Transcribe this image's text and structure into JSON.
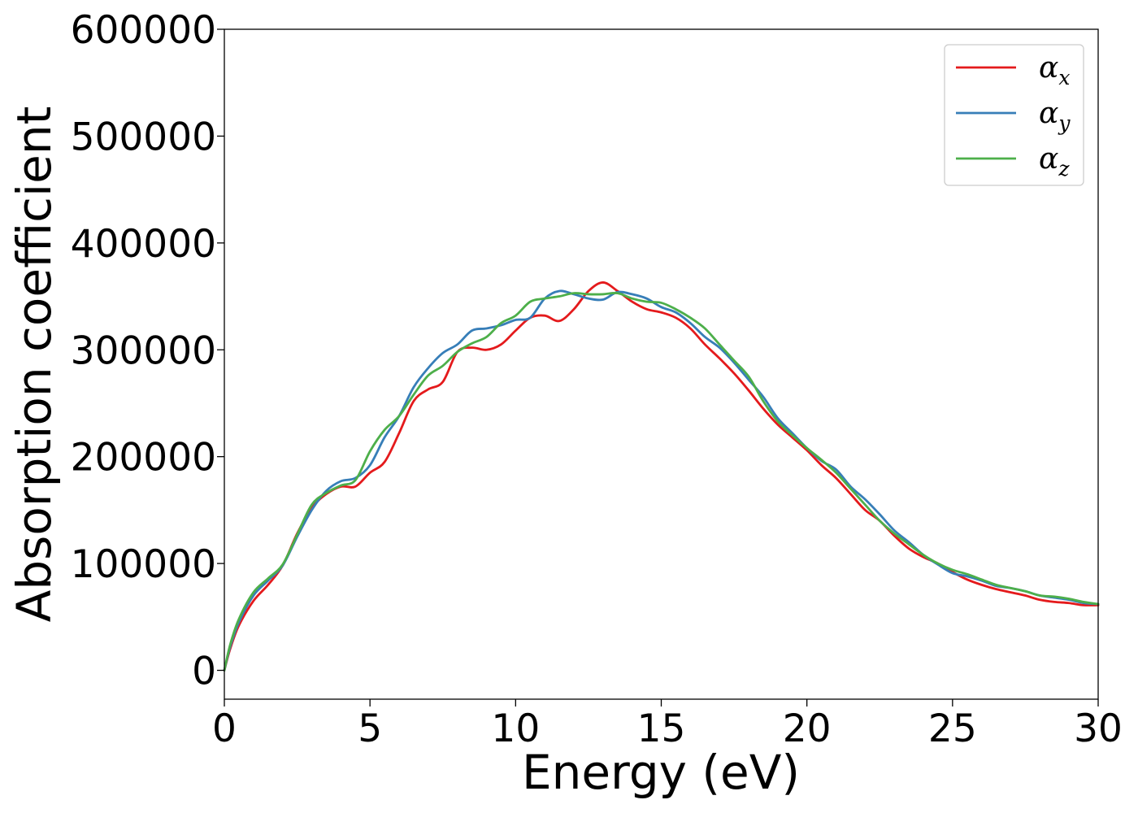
{
  "chart_data": {
    "type": "line",
    "title": "",
    "xlabel": "Energy (eV)",
    "ylabel": "Absorption coefficient",
    "xlim": [
      0,
      30
    ],
    "ylim": [
      -27000,
      600000
    ],
    "x_ticks": [
      0,
      5,
      10,
      15,
      20,
      25,
      30
    ],
    "y_ticks": [
      0,
      100000,
      200000,
      300000,
      400000,
      500000,
      600000
    ],
    "grid": false,
    "legend_position": "top-right",
    "series": [
      {
        "name": "α",
        "subscript": "x",
        "color": "#e41a1c",
        "x": [
          0,
          0.2,
          0.5,
          1.0,
          1.5,
          2.0,
          2.5,
          3.0,
          3.5,
          4.0,
          4.5,
          5.0,
          5.5,
          6.0,
          6.5,
          7.0,
          7.5,
          8.0,
          8.5,
          9.0,
          9.5,
          10.0,
          10.5,
          11.0,
          11.5,
          12.0,
          12.5,
          13.0,
          13.5,
          14.0,
          14.5,
          15.0,
          15.5,
          16.0,
          16.5,
          17.0,
          17.5,
          18.0,
          18.5,
          19.0,
          19.5,
          20.0,
          20.5,
          21.0,
          21.5,
          22.0,
          22.5,
          23.0,
          23.5,
          24.0,
          24.5,
          25.0,
          25.5,
          26.0,
          26.5,
          27.0,
          27.5,
          28.0,
          28.5,
          29.0,
          29.5,
          30.0
        ],
        "y": [
          0,
          20000,
          42000,
          65000,
          80000,
          98000,
          128000,
          152000,
          165000,
          172000,
          172000,
          185000,
          195000,
          222000,
          252000,
          263000,
          270000,
          298000,
          302000,
          300000,
          305000,
          318000,
          330000,
          332000,
          327000,
          338000,
          355000,
          363000,
          355000,
          345000,
          338000,
          335000,
          330000,
          320000,
          305000,
          292000,
          278000,
          262000,
          245000,
          230000,
          218000,
          206000,
          192000,
          180000,
          165000,
          150000,
          140000,
          126000,
          114000,
          106000,
          100000,
          92000,
          85000,
          80000,
          76000,
          73000,
          70000,
          66000,
          64000,
          63000,
          61000,
          61000
        ]
      },
      {
        "name": "α",
        "subscript": "y",
        "color": "#377eb8",
        "x": [
          0,
          0.2,
          0.5,
          1.0,
          1.5,
          2.0,
          2.5,
          3.0,
          3.5,
          4.0,
          4.5,
          5.0,
          5.5,
          6.0,
          6.5,
          7.0,
          7.5,
          8.0,
          8.5,
          9.0,
          9.5,
          10.0,
          10.5,
          11.0,
          11.5,
          12.0,
          12.5,
          13.0,
          13.5,
          14.0,
          14.5,
          15.0,
          15.5,
          16.0,
          16.5,
          17.0,
          17.5,
          18.0,
          18.5,
          19.0,
          19.5,
          20.0,
          20.5,
          21.0,
          21.5,
          22.0,
          22.5,
          23.0,
          23.5,
          24.0,
          24.5,
          25.0,
          25.5,
          26.0,
          26.5,
          27.0,
          27.5,
          28.0,
          28.5,
          29.0,
          29.5,
          30.0
        ],
        "y": [
          0,
          22000,
          45000,
          70000,
          84000,
          98000,
          125000,
          150000,
          168000,
          177000,
          180000,
          192000,
          218000,
          238000,
          265000,
          283000,
          297000,
          305000,
          318000,
          320000,
          323000,
          328000,
          330000,
          348000,
          355000,
          352000,
          348000,
          347000,
          354000,
          352000,
          348000,
          340000,
          335000,
          325000,
          312000,
          302000,
          288000,
          272000,
          256000,
          236000,
          222000,
          208000,
          196000,
          188000,
          172000,
          160000,
          146000,
          131000,
          120000,
          108000,
          99000,
          91000,
          88000,
          84000,
          79000,
          77000,
          74000,
          70000,
          68000,
          66000,
          63000,
          62000
        ]
      },
      {
        "name": "α",
        "subscript": "z",
        "color": "#4daf4a",
        "x": [
          0,
          0.2,
          0.5,
          1.0,
          1.5,
          2.0,
          2.5,
          3.0,
          3.5,
          4.0,
          4.5,
          5.0,
          5.5,
          6.0,
          6.5,
          7.0,
          7.5,
          8.0,
          8.5,
          9.0,
          9.5,
          10.0,
          10.5,
          11.0,
          11.5,
          12.0,
          12.5,
          13.0,
          13.5,
          14.0,
          14.5,
          15.0,
          15.5,
          16.0,
          16.5,
          17.0,
          17.5,
          18.0,
          18.5,
          19.0,
          19.5,
          20.0,
          20.5,
          21.0,
          21.5,
          22.0,
          22.5,
          23.0,
          23.5,
          24.0,
          24.5,
          25.0,
          25.5,
          26.0,
          26.5,
          27.0,
          27.5,
          28.0,
          28.5,
          29.0,
          29.5,
          30.0
        ],
        "y": [
          0,
          24000,
          48000,
          73000,
          86000,
          99000,
          127000,
          155000,
          166000,
          173000,
          178000,
          205000,
          225000,
          238000,
          258000,
          276000,
          285000,
          298000,
          306000,
          312000,
          325000,
          332000,
          345000,
          348000,
          350000,
          353000,
          352000,
          352000,
          353000,
          348000,
          345000,
          344000,
          338000,
          330000,
          320000,
          305000,
          290000,
          275000,
          252000,
          233000,
          220000,
          208000,
          197000,
          185000,
          170000,
          155000,
          140000,
          128000,
          118000,
          108000,
          100000,
          94000,
          90000,
          85000,
          80000,
          77000,
          74000,
          70000,
          69000,
          67000,
          64000,
          62000
        ]
      }
    ]
  }
}
